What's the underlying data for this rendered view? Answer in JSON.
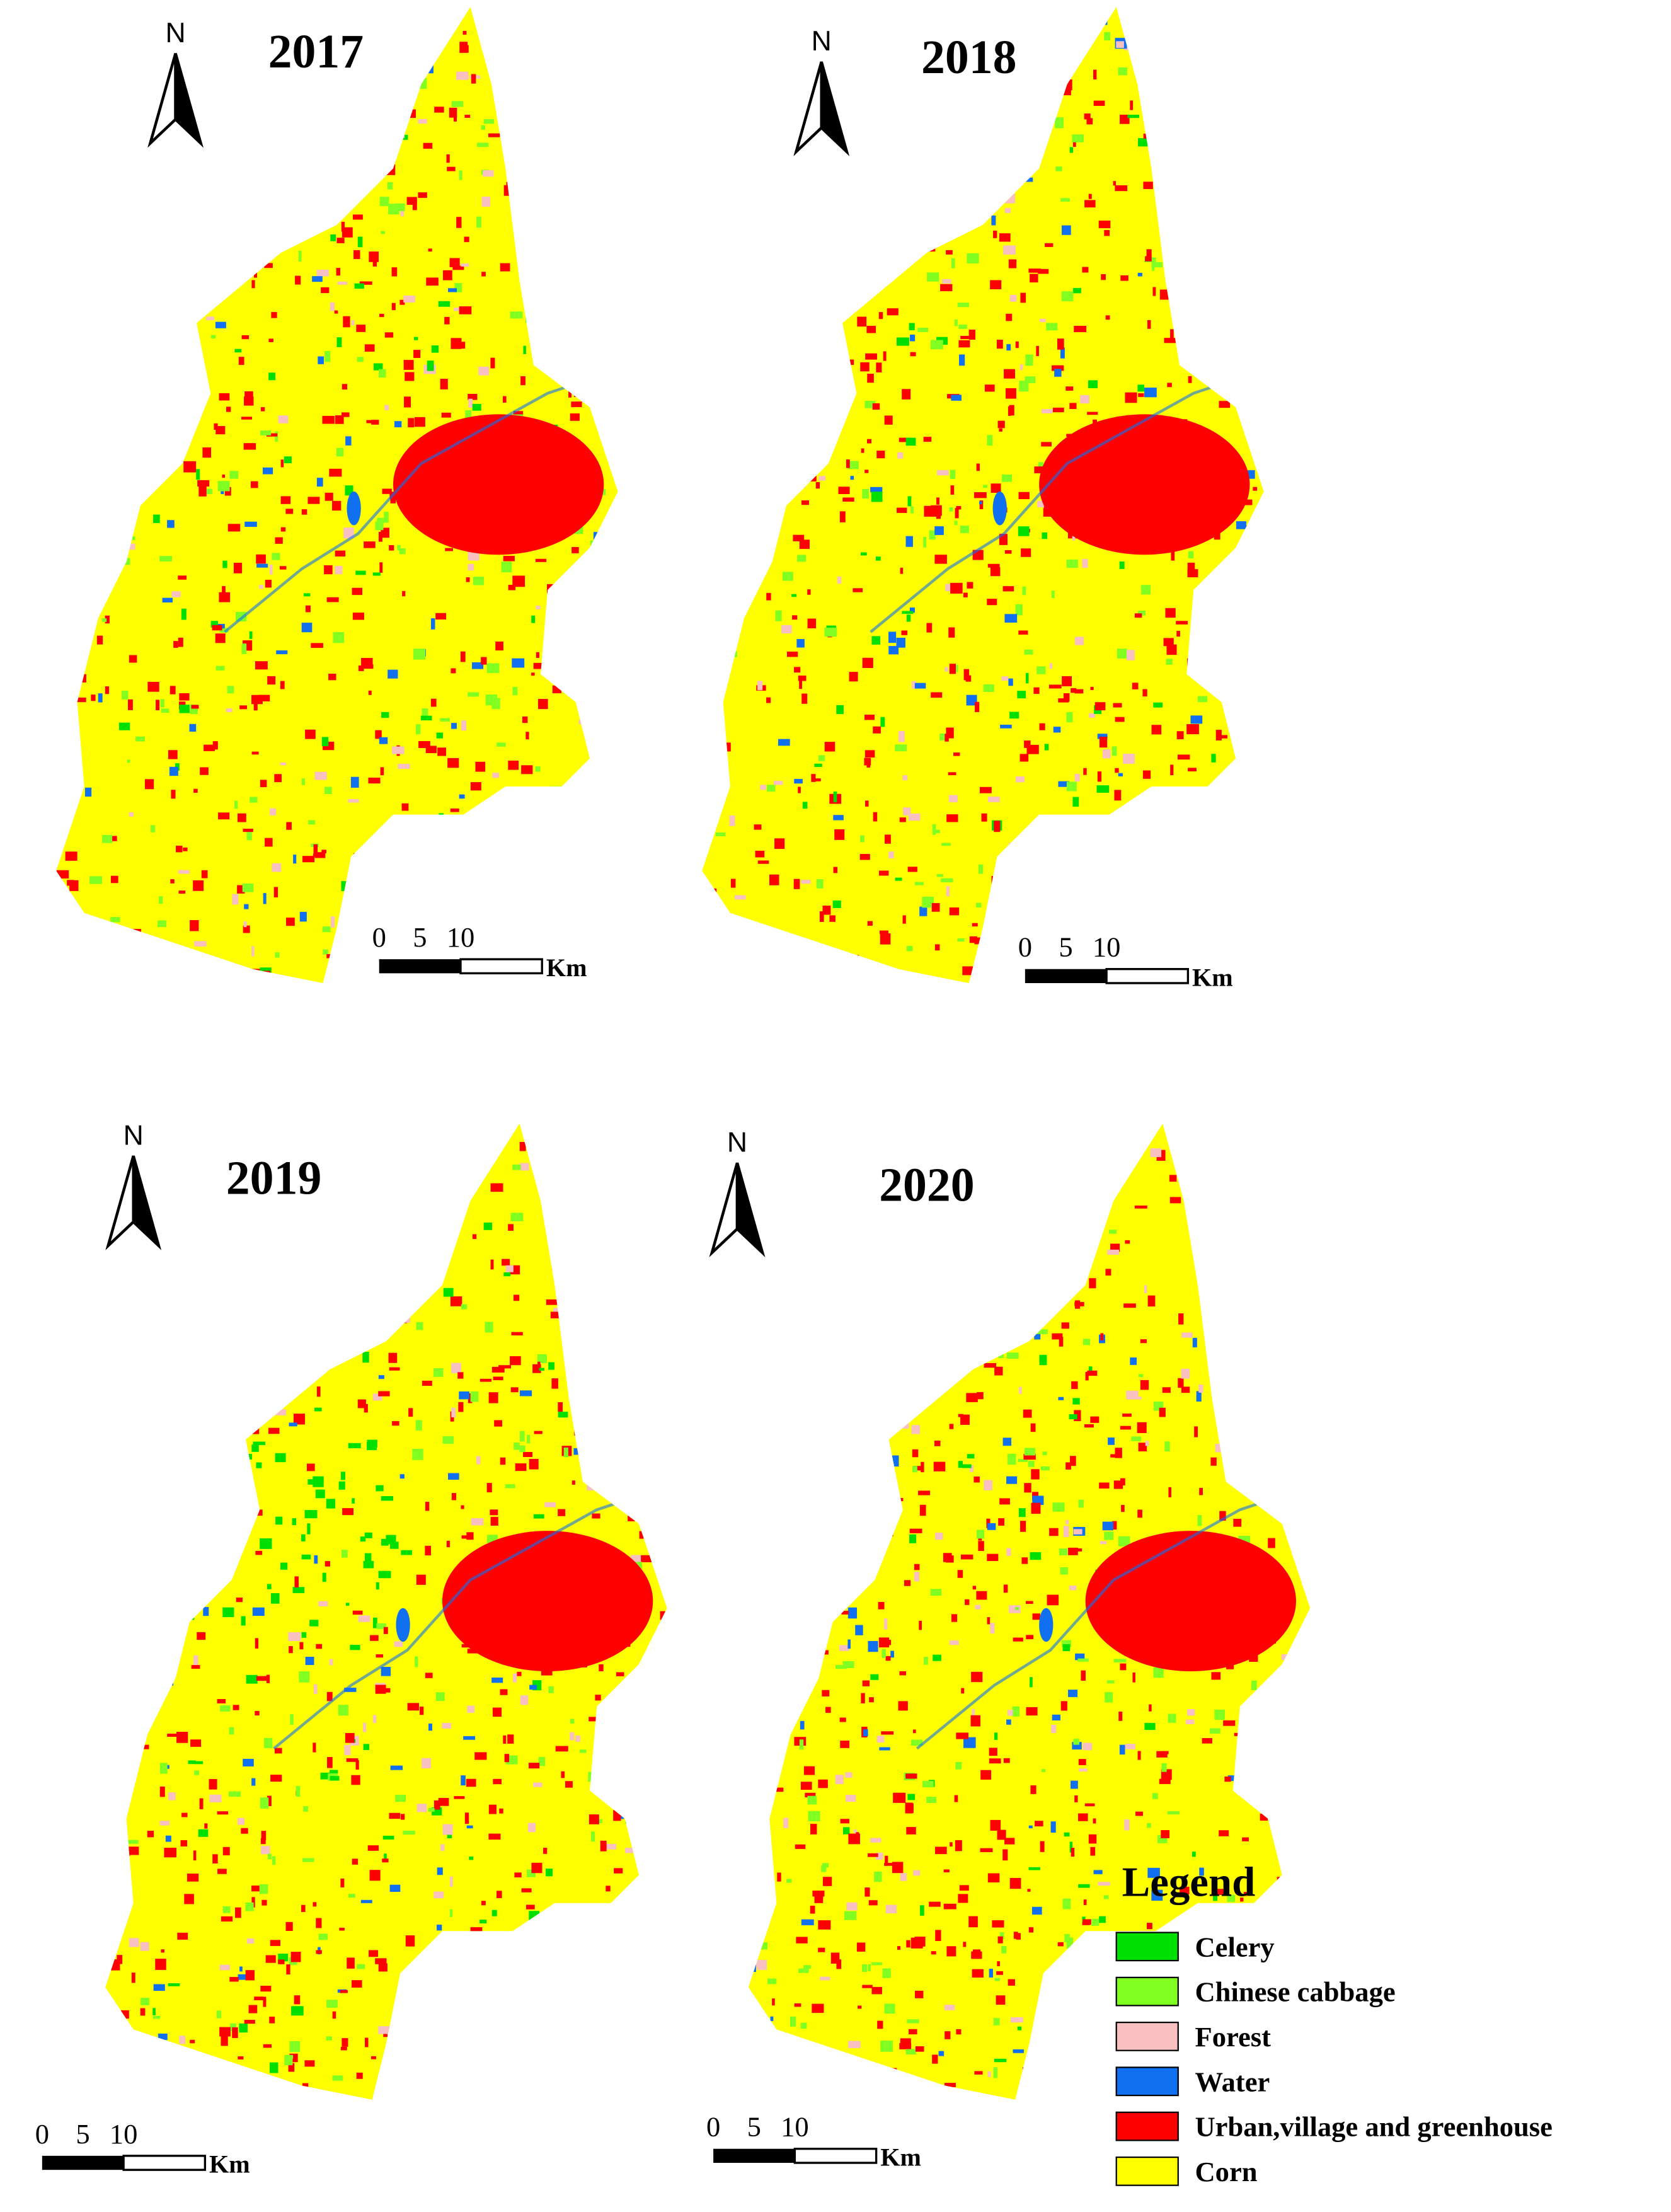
{
  "panels": [
    {
      "year": "2017",
      "north": "N",
      "scale": {
        "ticks": [
          0,
          5,
          10
        ],
        "unit": "Km"
      }
    },
    {
      "year": "2018",
      "north": "N",
      "scale": {
        "ticks": [
          0,
          5,
          10
        ],
        "unit": "Km"
      }
    },
    {
      "year": "2019",
      "north": "N",
      "scale": {
        "ticks": [
          0,
          5,
          10
        ],
        "unit": "Km"
      }
    },
    {
      "year": "2020",
      "north": "N",
      "scale": {
        "ticks": [
          0,
          5,
          10
        ],
        "unit": "Km"
      }
    }
  ],
  "legend": {
    "title": "Legend",
    "items": [
      {
        "label": "Celery",
        "color": "#00e000"
      },
      {
        "label": "Chinese cabbage",
        "color": "#80ff20"
      },
      {
        "label": "Forest",
        "color": "#f8c0c0"
      },
      {
        "label": "Water",
        "color": "#1070f0"
      },
      {
        "label": "Urban,village and greenhouse",
        "color": "#ff0000"
      },
      {
        "label": "Corn",
        "color": "#ffff00"
      }
    ]
  }
}
